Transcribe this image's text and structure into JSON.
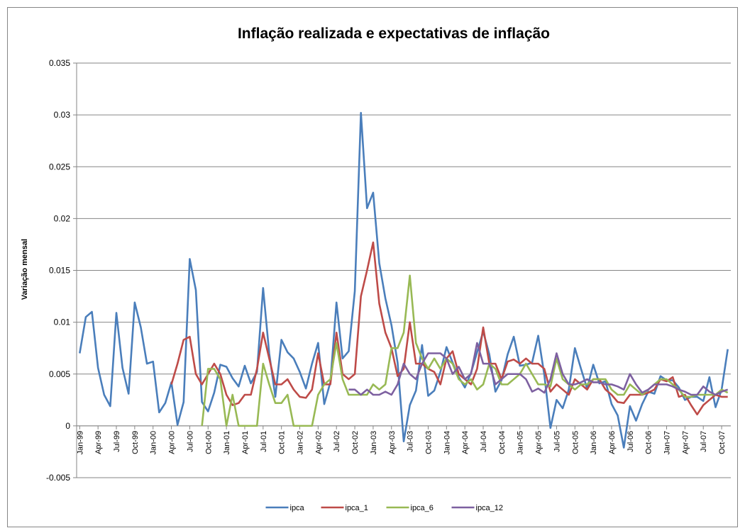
{
  "chart_data": {
    "type": "line",
    "title": "Inflação realizada e expectativas de inflação",
    "y_label": "Variação mensal",
    "categories": [
      "Jan-99",
      null,
      null,
      "Apr-99",
      null,
      null,
      "Jul-99",
      null,
      null,
      "Oct-99",
      null,
      null,
      "Jan-00",
      null,
      null,
      "Apr-00",
      null,
      null,
      "Jul-00",
      null,
      null,
      "Oct-00",
      null,
      null,
      "Jan-01",
      null,
      null,
      "Apr-01",
      null,
      null,
      "Jul-01",
      null,
      null,
      "Oct-01",
      null,
      null,
      "Jan-02",
      null,
      null,
      "Apr-02",
      null,
      null,
      "Jul-02",
      null,
      null,
      "Oct-02",
      null,
      null,
      "Jan-03",
      null,
      null,
      "Apr-03",
      null,
      null,
      "Jul-03",
      null,
      null,
      "Oct-03",
      null,
      null,
      "Jan-04",
      null,
      null,
      "Apr-04",
      null,
      null,
      "Jul-04",
      null,
      null,
      "Oct-04",
      null,
      null,
      "Jan-05",
      null,
      null,
      "Apr-05",
      null,
      null,
      "Jul-05",
      null,
      null,
      "Oct-05",
      null,
      null,
      "Jan-06",
      null,
      null,
      "Apr-06",
      null,
      null,
      "Jul-06",
      null,
      null,
      "Oct-06",
      null,
      null,
      "Jan-07",
      null,
      null,
      "Apr-07",
      null,
      null,
      "Jul-07",
      null,
      null,
      "Oct-07",
      null
    ],
    "series": [
      {
        "name": "ipca",
        "color": "#4a7ebb",
        "values": [
          0.007,
          0.0105,
          0.011,
          0.0056,
          0.003,
          0.0019,
          0.0109,
          0.0056,
          0.0031,
          0.0119,
          0.0095,
          0.006,
          0.0062,
          0.0013,
          0.0022,
          0.0042,
          0.0001,
          0.0023,
          0.0161,
          0.0131,
          0.0023,
          0.0014,
          0.0032,
          0.0059,
          0.0057,
          0.0046,
          0.0038,
          0.0058,
          0.0041,
          0.0052,
          0.0133,
          0.007,
          0.0028,
          0.0083,
          0.0071,
          0.0065,
          0.0052,
          0.0036,
          0.006,
          0.008,
          0.0021,
          0.0042,
          0.0119,
          0.0065,
          0.0072,
          0.013,
          0.0302,
          0.021,
          0.0225,
          0.0157,
          0.0123,
          0.0097,
          0.0061,
          -0.0015,
          0.002,
          0.0034,
          0.0078,
          0.0029,
          0.0034,
          0.0052,
          0.0076,
          0.0061,
          0.0047,
          0.0037,
          0.0051,
          0.0071,
          0.0091,
          0.0069,
          0.0033,
          0.0044,
          0.0069,
          0.0086,
          0.0058,
          0.0059,
          0.0061,
          0.0087,
          0.0049,
          -0.0002,
          0.0025,
          0.0017,
          0.0035,
          0.0075,
          0.0055,
          0.0036,
          0.0059,
          0.0041,
          0.0043,
          0.0021,
          0.001,
          -0.0021,
          0.0019,
          0.0005,
          0.0021,
          0.0033,
          0.0031,
          0.0048,
          0.0044,
          0.0044,
          0.0037,
          0.0025,
          0.0028,
          0.0028,
          0.0024,
          0.0047,
          0.0018,
          0.0035,
          0.0074
        ]
      },
      {
        "name": "ipca_1",
        "color": "#be4b48",
        "values": [
          null,
          null,
          null,
          null,
          null,
          null,
          null,
          null,
          null,
          null,
          null,
          null,
          null,
          null,
          null,
          0.004,
          0.006,
          0.0083,
          0.0086,
          0.005,
          0.004,
          0.005,
          0.006,
          0.005,
          0.003,
          0.002,
          0.0022,
          0.003,
          0.003,
          0.0055,
          0.009,
          0.0065,
          0.004,
          0.004,
          0.0045,
          0.0035,
          0.0028,
          0.0027,
          0.0035,
          0.007,
          0.004,
          0.004,
          0.009,
          0.005,
          0.0045,
          0.005,
          0.0125,
          0.015,
          0.0177,
          0.0118,
          0.009,
          0.0075,
          0.0048,
          0.0055,
          0.01,
          0.006,
          0.006,
          0.0055,
          0.0052,
          0.004,
          0.0065,
          0.0072,
          0.005,
          0.0045,
          0.004,
          0.0055,
          0.0095,
          0.006,
          0.006,
          0.0045,
          0.0062,
          0.0064,
          0.006,
          0.0065,
          0.006,
          0.006,
          0.0055,
          0.0033,
          0.004,
          0.0035,
          0.003,
          0.0045,
          0.004,
          0.0035,
          0.0045,
          0.0045,
          0.0035,
          0.003,
          0.0023,
          0.0022,
          0.003,
          0.003,
          0.003,
          0.0032,
          0.0035,
          0.0045,
          0.0043,
          0.0047,
          0.0028,
          0.003,
          0.002,
          0.0011,
          0.002,
          0.0025,
          0.003,
          0.0028,
          0.0028
        ]
      },
      {
        "name": "ipca_6",
        "color": "#98b954",
        "values": [
          null,
          null,
          null,
          null,
          null,
          null,
          null,
          null,
          null,
          null,
          null,
          null,
          null,
          null,
          null,
          null,
          null,
          null,
          null,
          null,
          0.0,
          0.0055,
          0.0055,
          0.0045,
          0.0,
          0.003,
          0.0,
          0.0,
          0.0,
          0.0,
          0.006,
          0.004,
          0.0022,
          0.0022,
          0.003,
          0.0,
          0.0,
          0.0,
          0.0,
          0.003,
          0.004,
          0.0045,
          0.008,
          0.0045,
          0.003,
          0.003,
          0.003,
          0.003,
          0.004,
          0.0035,
          0.004,
          0.0075,
          0.0075,
          0.009,
          0.0145,
          0.008,
          0.0065,
          0.0055,
          0.0065,
          0.0055,
          0.0065,
          0.006,
          0.0045,
          0.004,
          0.0045,
          0.0035,
          0.004,
          0.006,
          0.0055,
          0.004,
          0.004,
          0.0045,
          0.005,
          0.006,
          0.005,
          0.004,
          0.004,
          0.0038,
          0.0065,
          0.0045,
          0.004,
          0.0035,
          0.004,
          0.004,
          0.0045,
          0.0045,
          0.0045,
          0.0035,
          0.003,
          0.003,
          0.004,
          0.0035,
          0.003,
          0.0035,
          0.004,
          0.0045,
          0.0045,
          0.004,
          0.0035,
          0.0028,
          0.0028,
          0.003,
          0.003,
          0.003,
          0.003,
          0.0035,
          0.0032
        ]
      },
      {
        "name": "ipca_12",
        "color": "#7d60a0",
        "values": [
          null,
          null,
          null,
          null,
          null,
          null,
          null,
          null,
          null,
          null,
          null,
          null,
          null,
          null,
          null,
          null,
          null,
          null,
          null,
          null,
          null,
          null,
          null,
          null,
          null,
          null,
          null,
          null,
          null,
          null,
          null,
          null,
          null,
          null,
          null,
          null,
          null,
          null,
          null,
          null,
          null,
          null,
          null,
          null,
          0.0035,
          0.0035,
          0.003,
          0.0035,
          0.003,
          0.003,
          0.0033,
          0.003,
          0.004,
          0.006,
          0.005,
          0.0045,
          0.006,
          0.007,
          0.007,
          0.007,
          0.0065,
          0.005,
          0.0057,
          0.0045,
          0.005,
          0.008,
          0.006,
          0.006,
          0.004,
          0.0045,
          0.005,
          0.005,
          0.005,
          0.0045,
          0.0033,
          0.0036,
          0.0032,
          0.0045,
          0.007,
          0.005,
          0.004,
          0.004,
          0.0042,
          0.0045,
          0.0042,
          0.0042,
          0.004,
          0.004,
          0.0038,
          0.0035,
          0.005,
          0.004,
          0.0032,
          0.0035,
          0.004,
          0.004,
          0.004,
          0.0038,
          0.0035,
          0.0033,
          0.003,
          0.003,
          0.0038,
          0.0033,
          0.003,
          0.0033,
          0.0035
        ]
      }
    ],
    "ylim": [
      -0.005,
      0.035
    ],
    "yticks": [
      -0.005,
      0,
      0.005,
      0.01,
      0.015,
      0.02,
      0.025,
      0.03,
      0.035
    ],
    "grid": true,
    "legend": "bottom"
  }
}
